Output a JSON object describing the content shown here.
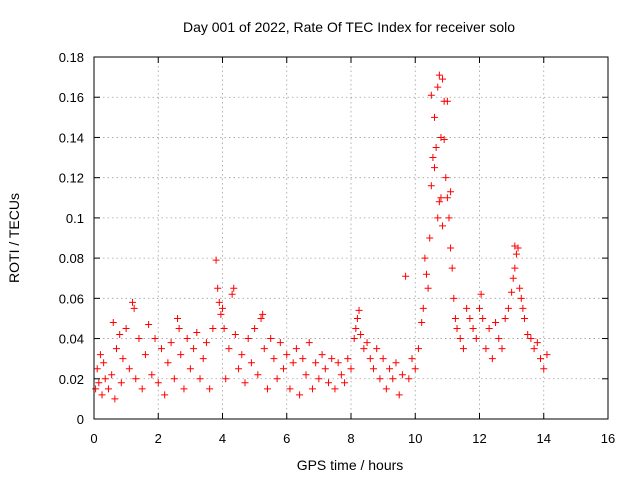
{
  "chart_data": {
    "type": "scatter",
    "title": "Day 001 of 2022, Rate Of TEC Index for receiver solo",
    "xlabel": "GPS time / hours",
    "ylabel": "ROTI / TECUs",
    "xlim": [
      0,
      16
    ],
    "ylim": [
      0,
      0.18
    ],
    "xticks": [
      "0",
      "2",
      "4",
      "6",
      "8",
      "10",
      "12",
      "14",
      "16"
    ],
    "yticks": [
      "0",
      "0.02",
      "0.04",
      "0.06",
      "0.08",
      "0.1",
      "0.12",
      "0.14",
      "0.16",
      "0.18"
    ],
    "grid": true,
    "marker": "+",
    "color": "#ff0000",
    "series": [
      {
        "points": [
          [
            0.05,
            0.015
          ],
          [
            0.1,
            0.025
          ],
          [
            0.15,
            0.018
          ],
          [
            0.2,
            0.032
          ],
          [
            0.25,
            0.012
          ],
          [
            0.3,
            0.028
          ],
          [
            0.35,
            0.02
          ],
          [
            0.45,
            0.015
          ],
          [
            0.55,
            0.022
          ],
          [
            0.6,
            0.048
          ],
          [
            0.65,
            0.01
          ],
          [
            0.7,
            0.035
          ],
          [
            0.8,
            0.042
          ],
          [
            0.85,
            0.018
          ],
          [
            0.9,
            0.03
          ],
          [
            1.0,
            0.045
          ],
          [
            1.1,
            0.025
          ],
          [
            1.2,
            0.058
          ],
          [
            1.25,
            0.055
          ],
          [
            1.3,
            0.02
          ],
          [
            1.4,
            0.04
          ],
          [
            1.5,
            0.015
          ],
          [
            1.6,
            0.032
          ],
          [
            1.7,
            0.047
          ],
          [
            1.8,
            0.022
          ],
          [
            1.9,
            0.04
          ],
          [
            2.0,
            0.018
          ],
          [
            2.1,
            0.035
          ],
          [
            2.2,
            0.012
          ],
          [
            2.3,
            0.028
          ],
          [
            2.4,
            0.038
          ],
          [
            2.5,
            0.02
          ],
          [
            2.6,
            0.05
          ],
          [
            2.65,
            0.045
          ],
          [
            2.7,
            0.032
          ],
          [
            2.8,
            0.015
          ],
          [
            2.9,
            0.04
          ],
          [
            3.0,
            0.025
          ],
          [
            3.1,
            0.035
          ],
          [
            3.2,
            0.043
          ],
          [
            3.3,
            0.02
          ],
          [
            3.4,
            0.03
          ],
          [
            3.5,
            0.038
          ],
          [
            3.6,
            0.015
          ],
          [
            3.7,
            0.045
          ],
          [
            3.8,
            0.079
          ],
          [
            3.85,
            0.065
          ],
          [
            3.9,
            0.058
          ],
          [
            3.95,
            0.052
          ],
          [
            4.0,
            0.055
          ],
          [
            4.05,
            0.045
          ],
          [
            4.1,
            0.02
          ],
          [
            4.2,
            0.035
          ],
          [
            4.3,
            0.062
          ],
          [
            4.35,
            0.065
          ],
          [
            4.4,
            0.042
          ],
          [
            4.5,
            0.025
          ],
          [
            4.6,
            0.032
          ],
          [
            4.7,
            0.018
          ],
          [
            4.8,
            0.04
          ],
          [
            4.9,
            0.028
          ],
          [
            5.0,
            0.045
          ],
          [
            5.1,
            0.022
          ],
          [
            5.2,
            0.05
          ],
          [
            5.25,
            0.052
          ],
          [
            5.3,
            0.035
          ],
          [
            5.4,
            0.015
          ],
          [
            5.5,
            0.04
          ],
          [
            5.6,
            0.03
          ],
          [
            5.7,
            0.02
          ],
          [
            5.8,
            0.038
          ],
          [
            5.9,
            0.025
          ],
          [
            6.0,
            0.032
          ],
          [
            6.1,
            0.015
          ],
          [
            6.2,
            0.028
          ],
          [
            6.3,
            0.035
          ],
          [
            6.4,
            0.012
          ],
          [
            6.5,
            0.03
          ],
          [
            6.6,
            0.022
          ],
          [
            6.7,
            0.038
          ],
          [
            6.8,
            0.015
          ],
          [
            6.9,
            0.028
          ],
          [
            7.0,
            0.02
          ],
          [
            7.1,
            0.032
          ],
          [
            7.2,
            0.025
          ],
          [
            7.3,
            0.018
          ],
          [
            7.4,
            0.03
          ],
          [
            7.5,
            0.015
          ],
          [
            7.6,
            0.028
          ],
          [
            7.7,
            0.022
          ],
          [
            7.8,
            0.018
          ],
          [
            7.9,
            0.03
          ],
          [
            8.0,
            0.025
          ],
          [
            8.1,
            0.04
          ],
          [
            8.15,
            0.045
          ],
          [
            8.2,
            0.05
          ],
          [
            8.25,
            0.054
          ],
          [
            8.3,
            0.042
          ],
          [
            8.4,
            0.035
          ],
          [
            8.5,
            0.038
          ],
          [
            8.6,
            0.03
          ],
          [
            8.7,
            0.025
          ],
          [
            8.8,
            0.035
          ],
          [
            8.9,
            0.02
          ],
          [
            9.0,
            0.03
          ],
          [
            9.1,
            0.015
          ],
          [
            9.2,
            0.025
          ],
          [
            9.3,
            0.02
          ],
          [
            9.4,
            0.028
          ],
          [
            9.5,
            0.012
          ],
          [
            9.6,
            0.022
          ],
          [
            9.7,
            0.071
          ],
          [
            9.8,
            0.02
          ],
          [
            9.9,
            0.03
          ],
          [
            10.0,
            0.025
          ],
          [
            10.1,
            0.035
          ],
          [
            10.2,
            0.048
          ],
          [
            10.25,
            0.055
          ],
          [
            10.3,
            0.08
          ],
          [
            10.35,
            0.072
          ],
          [
            10.4,
            0.065
          ],
          [
            10.45,
            0.09
          ],
          [
            10.5,
            0.116
          ],
          [
            10.5,
            0.161
          ],
          [
            10.55,
            0.13
          ],
          [
            10.6,
            0.125
          ],
          [
            10.6,
            0.15
          ],
          [
            10.65,
            0.135
          ],
          [
            10.7,
            0.1
          ],
          [
            10.7,
            0.165
          ],
          [
            10.75,
            0.171
          ],
          [
            10.75,
            0.108
          ],
          [
            10.8,
            0.14
          ],
          [
            10.8,
            0.11
          ],
          [
            10.85,
            0.096
          ],
          [
            10.85,
            0.169
          ],
          [
            10.9,
            0.158
          ],
          [
            10.9,
            0.139
          ],
          [
            10.95,
            0.12
          ],
          [
            11.0,
            0.11
          ],
          [
            11.0,
            0.158
          ],
          [
            11.05,
            0.1
          ],
          [
            11.1,
            0.113
          ],
          [
            11.1,
            0.085
          ],
          [
            11.15,
            0.075
          ],
          [
            11.2,
            0.06
          ],
          [
            11.25,
            0.05
          ],
          [
            11.3,
            0.045
          ],
          [
            11.4,
            0.04
          ],
          [
            11.5,
            0.035
          ],
          [
            11.6,
            0.055
          ],
          [
            11.7,
            0.05
          ],
          [
            11.8,
            0.045
          ],
          [
            11.9,
            0.04
          ],
          [
            12.0,
            0.055
          ],
          [
            12.05,
            0.062
          ],
          [
            12.1,
            0.05
          ],
          [
            12.2,
            0.035
          ],
          [
            12.3,
            0.045
          ],
          [
            12.4,
            0.03
          ],
          [
            12.5,
            0.048
          ],
          [
            12.6,
            0.04
          ],
          [
            12.7,
            0.035
          ],
          [
            12.8,
            0.05
          ],
          [
            12.9,
            0.055
          ],
          [
            13.0,
            0.063
          ],
          [
            13.05,
            0.07
          ],
          [
            13.1,
            0.075
          ],
          [
            13.1,
            0.086
          ],
          [
            13.15,
            0.082
          ],
          [
            13.2,
            0.085
          ],
          [
            13.25,
            0.065
          ],
          [
            13.3,
            0.06
          ],
          [
            13.35,
            0.055
          ],
          [
            13.4,
            0.05
          ],
          [
            13.5,
            0.042
          ],
          [
            13.6,
            0.04
          ],
          [
            13.7,
            0.035
          ],
          [
            13.8,
            0.038
          ],
          [
            13.9,
            0.03
          ],
          [
            14.0,
            0.025
          ],
          [
            14.1,
            0.032
          ]
        ]
      }
    ]
  }
}
